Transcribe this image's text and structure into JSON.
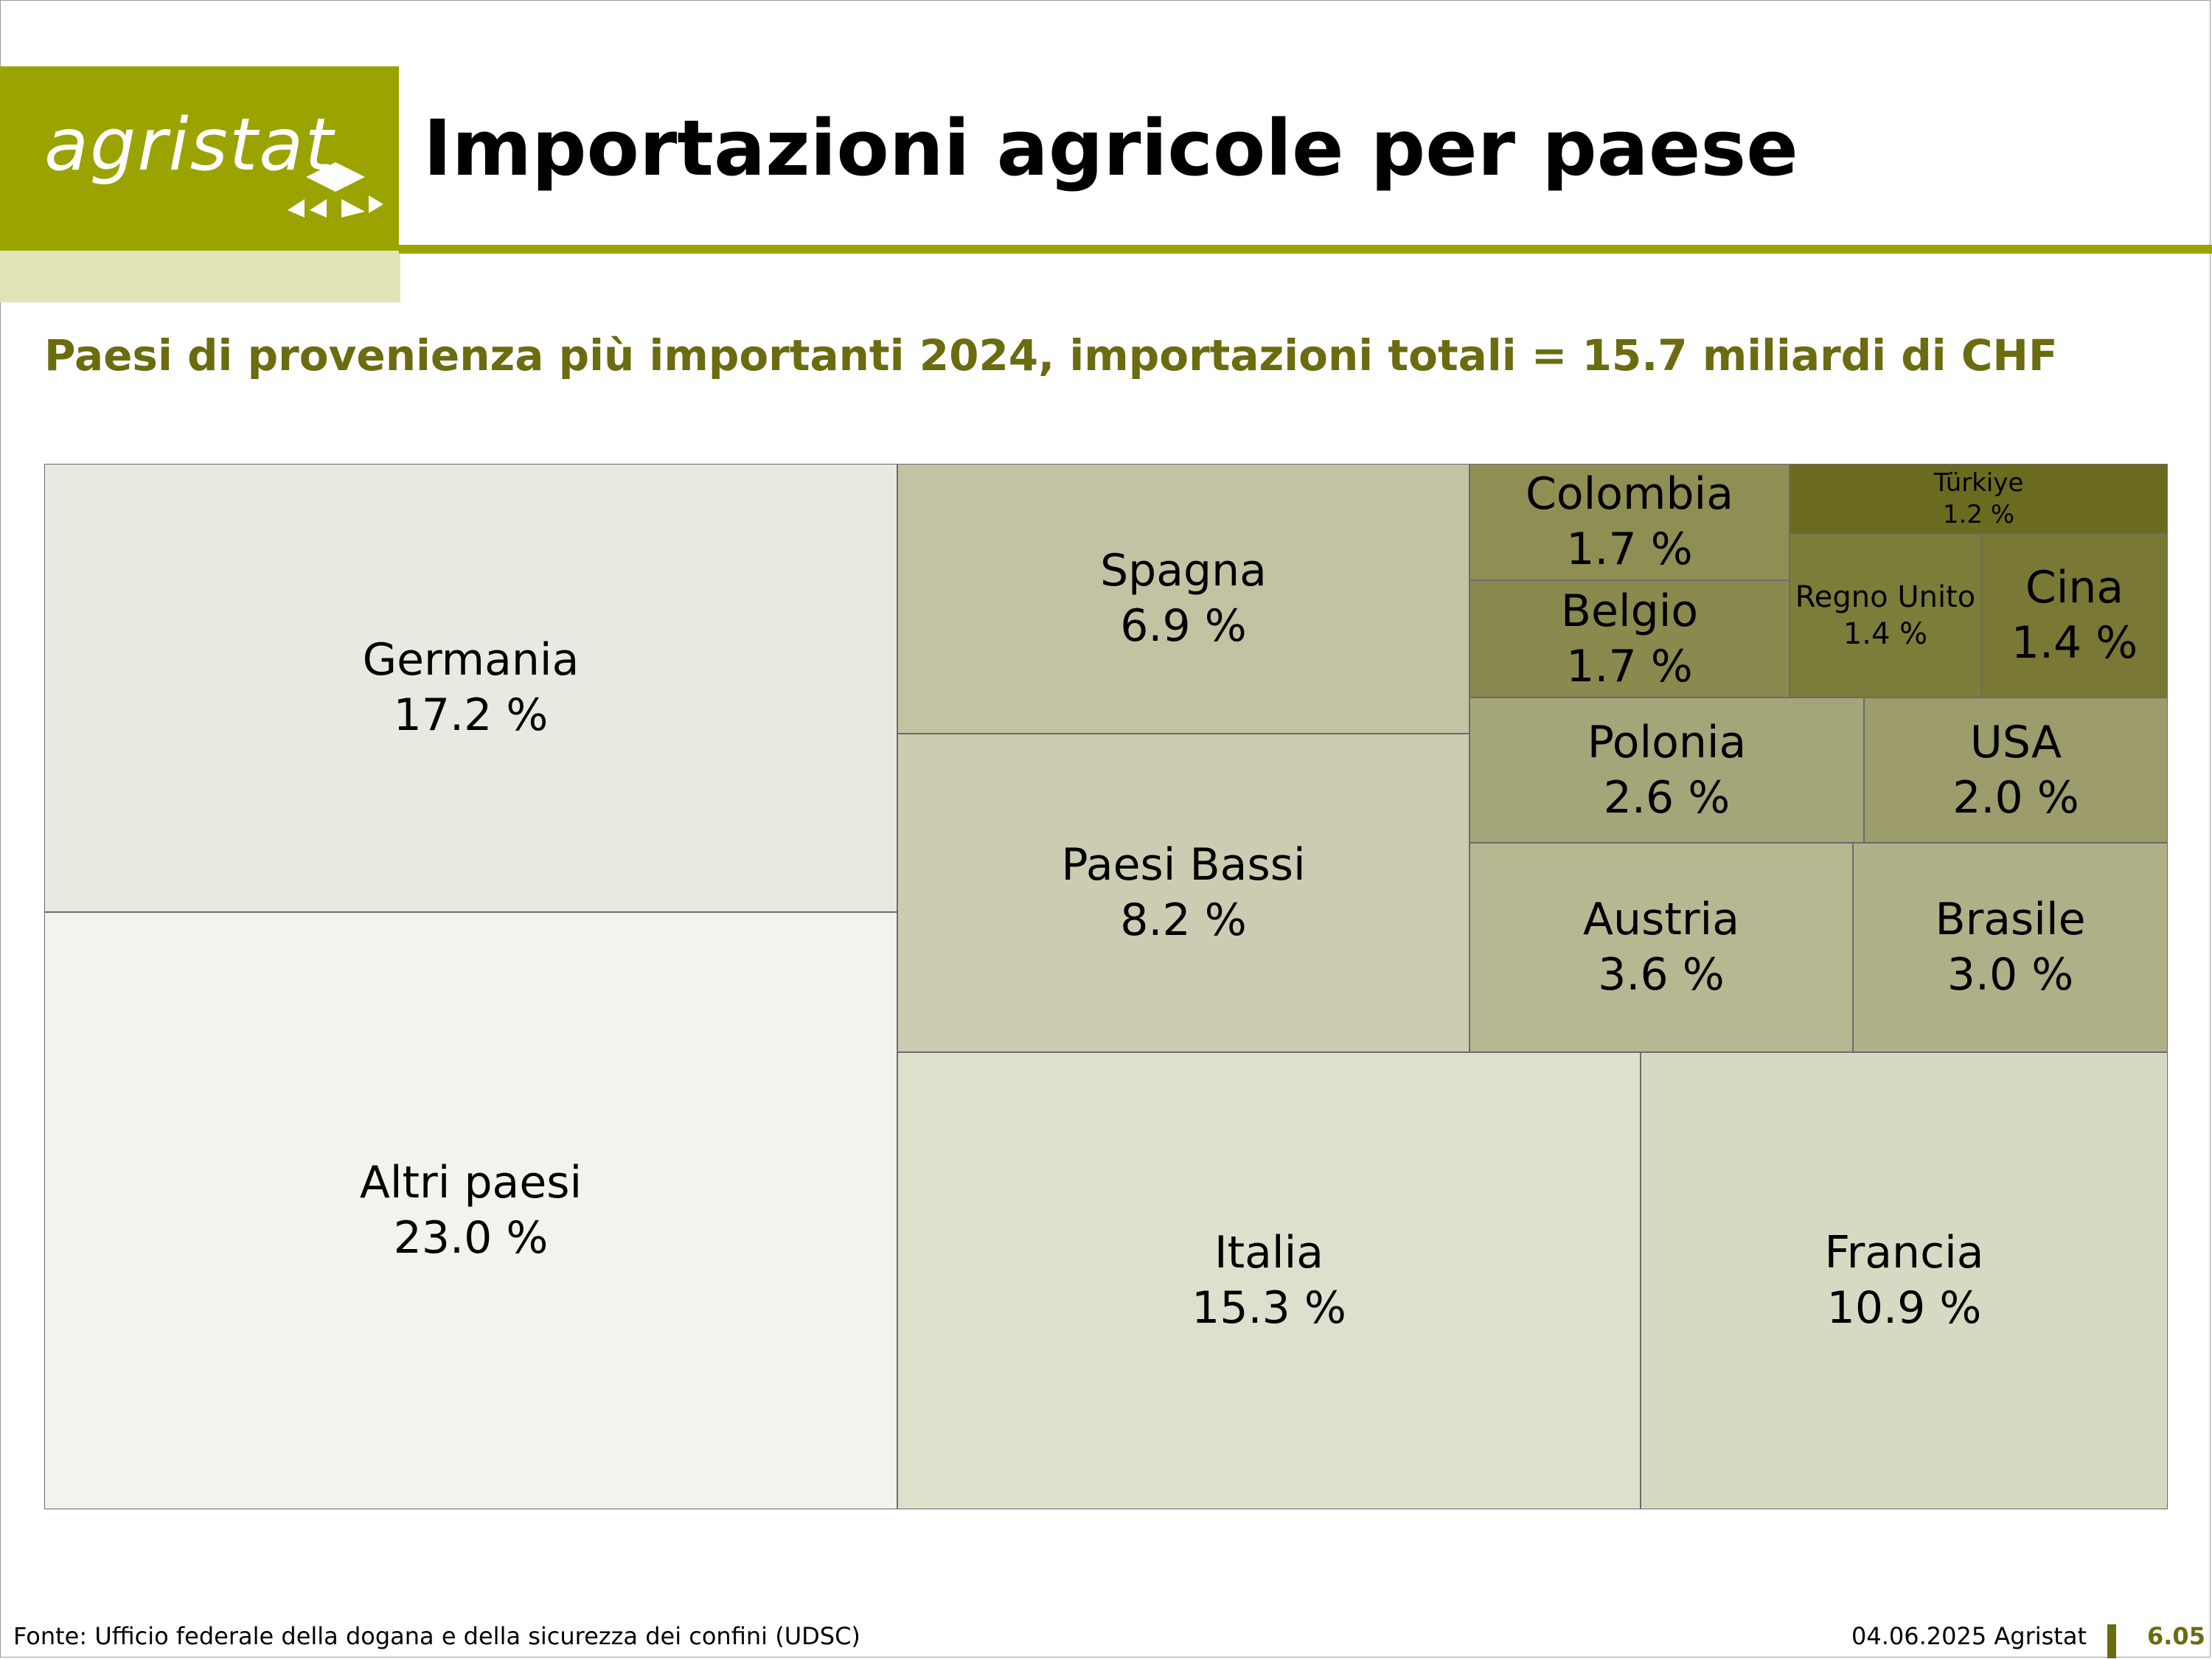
{
  "header": {
    "logo_text": "agristat",
    "title": "Importazioni agricole per paese"
  },
  "subtitle": "Paesi di provenienza più importanti 2024, importazioni totali = 15.7 miliardi di CHF",
  "footer": {
    "source": "Fonte: Ufficio federale della dogana e della sicurezza dei confini (UDSC)",
    "date": "04.06.2025 Agristat",
    "page": "6.05"
  },
  "colors": {
    "brand": "#9aa300",
    "brand_light": "#e1e5b6",
    "subtitle": "#6b6b10"
  },
  "chart_data": {
    "type": "treemap",
    "unit": "%",
    "items": [
      {
        "name": "Altri paesi",
        "label": "23.0 %",
        "value": 23.0,
        "color": "#f3f3ed"
      },
      {
        "name": "Germania",
        "label": "17.2 %",
        "value": 17.2,
        "color": "#e9e9e1"
      },
      {
        "name": "Italia",
        "label": "15.3 %",
        "value": 15.3,
        "color": "#dfdfcd"
      },
      {
        "name": "Francia",
        "label": "10.9 %",
        "value": 10.9,
        "color": "#d8d9c3"
      },
      {
        "name": "Paesi Bassi",
        "label": "8.2 %",
        "value": 8.2,
        "color": "#cbccb2"
      },
      {
        "name": "Spagna",
        "label": "6.9 %",
        "value": 6.9,
        "color": "#c2c3a3"
      },
      {
        "name": "Austria",
        "label": "3.6 %",
        "value": 3.6,
        "color": "#b7b792"
      },
      {
        "name": "Brasile",
        "label": "3.0 %",
        "value": 3.0,
        "color": "#afb088"
      },
      {
        "name": "Polonia",
        "label": "2.6 %",
        "value": 2.6,
        "color": "#a5a57a"
      },
      {
        "name": "USA",
        "label": "2.0 %",
        "value": 2.0,
        "color": "#9c9c6c"
      },
      {
        "name": "Colombia",
        "label": "1.7 %",
        "value": 1.7,
        "color": "#8f8f54"
      },
      {
        "name": "Belgio",
        "label": "1.7 %",
        "value": 1.7,
        "color": "#8a8a4e"
      },
      {
        "name": "Regno Unito",
        "label": "1.4 %",
        "value": 1.4,
        "color": "#7d7d3a"
      },
      {
        "name": "Cina",
        "label": "1.4 %",
        "value": 1.4,
        "color": "#797935"
      },
      {
        "name": "Türkiye",
        "label": "1.2 %",
        "value": 1.2,
        "color": "#6b6b20"
      }
    ]
  }
}
